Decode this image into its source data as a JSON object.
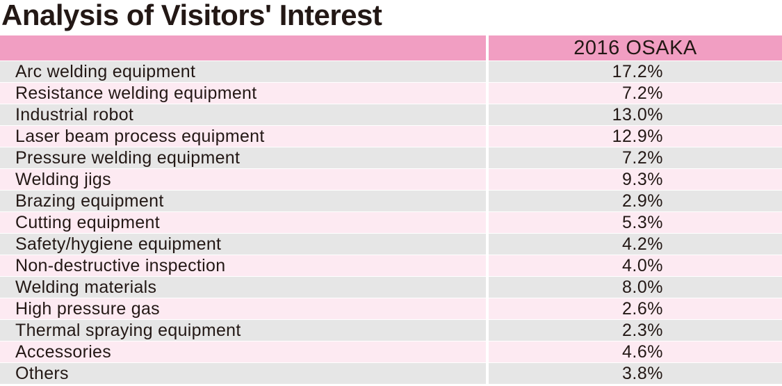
{
  "title": "Analysis of Visitors' Interest",
  "table": {
    "column_header": "2016 OSAKA",
    "rows": [
      {
        "label": "Arc welding equipment",
        "value": "17.2%"
      },
      {
        "label": "Resistance welding equipment",
        "value": "7.2%"
      },
      {
        "label": "Industrial robot",
        "value": "13.0%"
      },
      {
        "label": "Laser beam process equipment",
        "value": "12.9%"
      },
      {
        "label": "Pressure welding equipment",
        "value": "7.2%"
      },
      {
        "label": "Welding jigs",
        "value": "9.3%"
      },
      {
        "label": "Brazing equipment",
        "value": "2.9%"
      },
      {
        "label": "Cutting equipment",
        "value": "5.3%"
      },
      {
        "label": "Safety/hygiene equipment",
        "value": "4.2%"
      },
      {
        "label": "Non-destructive inspection",
        "value": "4.0%"
      },
      {
        "label": "Welding materials",
        "value": "8.0%"
      },
      {
        "label": "High pressure gas",
        "value": "2.6%"
      },
      {
        "label": "Thermal spraying equipment",
        "value": "2.3%"
      },
      {
        "label": "Accessories",
        "value": "4.6%"
      },
      {
        "label": "Others",
        "value": "3.8%"
      }
    ]
  },
  "colors": {
    "header": "#f19ec2",
    "row_gray": "#e6e6e6",
    "row_pink": "#fdeaf2",
    "text": "#231815"
  }
}
